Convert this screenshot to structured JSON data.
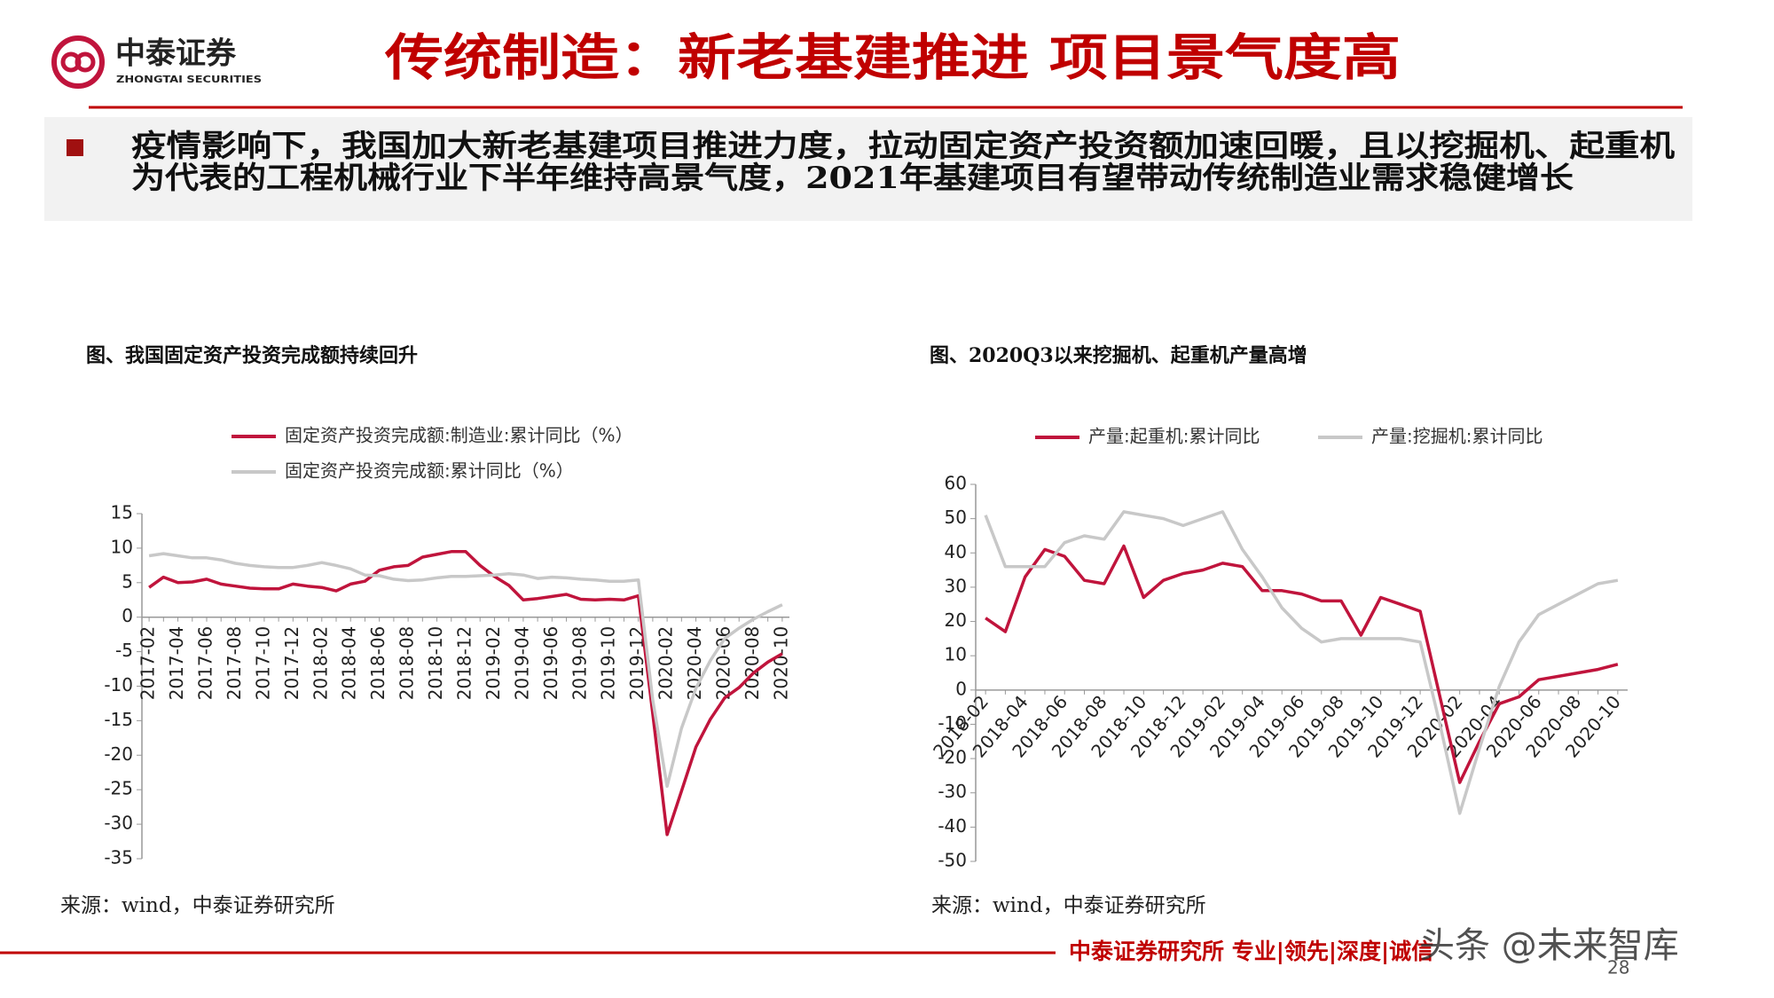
{
  "header": {
    "logo_name": "中泰证券",
    "logo_subtitle": "ZHONGTAI SECURITIES",
    "title": "传统制造：新老基建推进 项目景气度高"
  },
  "bullet": {
    "lines": [
      "疫情影响下，我国加大新老基建项目推进力度，拉动固定资产投资额加速回暖，且以挖掘机、起重机",
      "为代表的工程机械行业下半年维持高景气度，2021年基建项目有望带动传统制造业需求稳健增长"
    ]
  },
  "chart_data": [
    {
      "type": "line",
      "title": "图、我国固定资产投资完成额持续回升",
      "source": "来源：wind，中泰证券研究所",
      "categories": [
        "2017-02",
        null,
        "2017-04",
        null,
        "2017-06",
        null,
        "2017-08",
        null,
        "2017-10",
        null,
        "2017-12",
        null,
        "2018-02",
        null,
        "2018-04",
        null,
        "2018-06",
        null,
        "2018-08",
        null,
        "2018-10",
        null,
        "2018-12",
        null,
        "2019-02",
        null,
        "2019-04",
        null,
        "2019-06",
        null,
        "2019-08",
        null,
        "2019-10",
        null,
        "2019-12",
        null,
        "2020-02",
        null,
        "2020-04",
        null,
        "2020-06",
        null,
        "2020-08",
        null,
        "2020-10"
      ],
      "series": [
        {
          "name": "固定资产投资完成额:制造业:累计同比（%）",
          "color": "#c0143c",
          "values": [
            4.3,
            5.8,
            5.0,
            5.1,
            5.5,
            4.8,
            4.5,
            4.2,
            4.1,
            4.1,
            4.8,
            4.5,
            4.3,
            3.8,
            4.8,
            5.2,
            6.8,
            7.3,
            7.5,
            8.7,
            9.1,
            9.5,
            9.5,
            7.5,
            5.9,
            4.6,
            2.5,
            2.7,
            3.0,
            3.3,
            2.6,
            2.5,
            2.6,
            2.5,
            3.1,
            -14,
            -31.5,
            -25.2,
            -18.8,
            -14.8,
            -11.7,
            -10.2,
            -8.1,
            -6.5,
            -5.3
          ]
        },
        {
          "name": "固定资产投资完成额:累计同比（%）",
          "color": "#c8c8c8",
          "values": [
            8.9,
            9.2,
            8.9,
            8.6,
            8.6,
            8.3,
            7.8,
            7.5,
            7.3,
            7.2,
            7.2,
            7.5,
            7.9,
            7.5,
            7.0,
            6.1,
            6.0,
            5.5,
            5.3,
            5.4,
            5.7,
            5.9,
            5.9,
            6.0,
            6.1,
            6.3,
            6.1,
            5.6,
            5.8,
            5.7,
            5.5,
            5.4,
            5.2,
            5.2,
            5.4,
            -12,
            -24.5,
            -16.1,
            -10.3,
            -6.3,
            -3.1,
            -1.6,
            -0.3,
            0.8,
            1.8
          ]
        }
      ],
      "ylim": [
        -35,
        15
      ],
      "yticks": [
        -35,
        -30,
        -25,
        -20,
        -15,
        -10,
        -5,
        0,
        5,
        10,
        15
      ],
      "legend": "top-stacked",
      "x_label_rotation": -90
    },
    {
      "type": "line",
      "title": "图、2020Q3以来挖掘机、起重机产量高增",
      "source": "来源：wind，中泰证券研究所",
      "categories": [
        "2018-02",
        null,
        "2018-04",
        null,
        "2018-06",
        null,
        "2018-08",
        null,
        "2018-10",
        null,
        "2018-12",
        null,
        "2019-02",
        null,
        "2019-04",
        null,
        "2019-06",
        null,
        "2019-08",
        null,
        "2019-10",
        null,
        "2019-12",
        null,
        "2020-02",
        null,
        "2020-04",
        null,
        "2020-06",
        null,
        "2020-08",
        null,
        "2020-10"
      ],
      "series": [
        {
          "name": "产量:起重机:累计同比",
          "color": "#c0143c",
          "values": [
            21,
            17,
            33,
            41,
            39,
            32,
            31,
            42,
            27,
            32,
            34,
            35,
            37,
            36,
            29,
            29,
            28,
            26,
            26,
            16,
            27,
            25,
            23,
            -2,
            -27,
            -15,
            -4,
            -2,
            3,
            4,
            5,
            6,
            7.5
          ]
        },
        {
          "name": "产量:挖掘机:累计同比",
          "color": "#c8c8c8",
          "values": [
            51,
            36,
            36,
            36,
            43,
            45,
            44,
            52,
            51,
            50,
            48,
            50,
            52,
            41,
            33,
            24,
            18,
            14,
            15,
            15,
            15,
            15,
            14,
            -10,
            -36,
            -17,
            1,
            14,
            22,
            25,
            28,
            31,
            32
          ]
        }
      ],
      "ylim": [
        -50,
        60
      ],
      "yticks": [
        -50,
        -40,
        -30,
        -20,
        -10,
        0,
        10,
        20,
        30,
        40,
        50,
        60
      ],
      "legend": "top-row",
      "x_label_rotation": -50
    }
  ],
  "footer": {
    "text": "中泰证券研究所 专业|领先|深度|诚信",
    "watermark": "头条 @未来智库",
    "page": "28"
  }
}
